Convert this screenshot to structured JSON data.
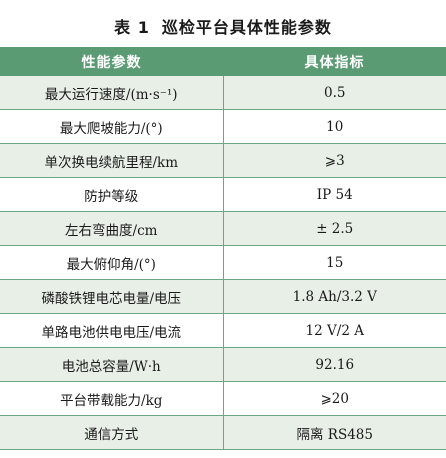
{
  "caption": {
    "number": "表 1",
    "title": "巡检平台具体性能参数"
  },
  "table": {
    "headers": [
      "性能参数",
      "具体指标"
    ],
    "rows": [
      {
        "param": "最大运行速度/(m·s⁻¹)",
        "value": "0.5"
      },
      {
        "param": "最大爬坡能力/(°)",
        "value": "10"
      },
      {
        "param": "单次换电续航里程/km",
        "value": "⩾3"
      },
      {
        "param": "防护等级",
        "value": "IP 54"
      },
      {
        "param": "左右弯曲度/cm",
        "value": "± 2.5"
      },
      {
        "param": "最大俯仰角/(°)",
        "value": "15"
      },
      {
        "param": "磷酸铁锂电芯电量/电压",
        "value": "1.8 Ah/3.2 V"
      },
      {
        "param": "单路电池供电电压/电流",
        "value": "12 V/2 A"
      },
      {
        "param": "电池总容量/W·h",
        "value": "92.16"
      },
      {
        "param": "平台带载能力/kg",
        "value": "⩾20"
      },
      {
        "param": "通信方式",
        "value": "隔离 RS485"
      }
    ]
  }
}
